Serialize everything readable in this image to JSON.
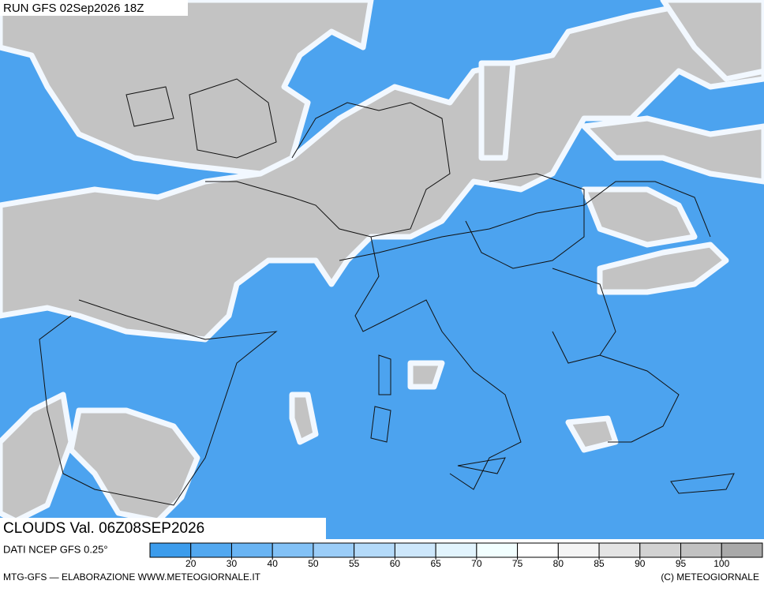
{
  "header": {
    "run": "RUN GFS 02Sep2026 18Z"
  },
  "legend": {
    "title": "CLOUDS Val. 06Z08SEP2026",
    "source": "DATI NCEP GFS 0.25°",
    "colors": [
      "#3c9cec",
      "#52a8f0",
      "#69b4f3",
      "#82c1f6",
      "#9bcdf8",
      "#b4daf9",
      "#cde7fb",
      "#e2f4fd",
      "#f2ffff",
      "#ffffff",
      "#f4f4f4",
      "#e4e4e4",
      "#d2d2d2",
      "#c2c2c2",
      "#a9a9a9"
    ],
    "ticks": [
      20,
      30,
      40,
      50,
      55,
      60,
      65,
      70,
      75,
      80,
      85,
      90,
      95,
      100
    ]
  },
  "footer": {
    "left": "MTG-GFS — ELABORAZIONE WWW.METEOGIORNALE.IT",
    "right": "(C) METEOGIORNALE"
  }
}
